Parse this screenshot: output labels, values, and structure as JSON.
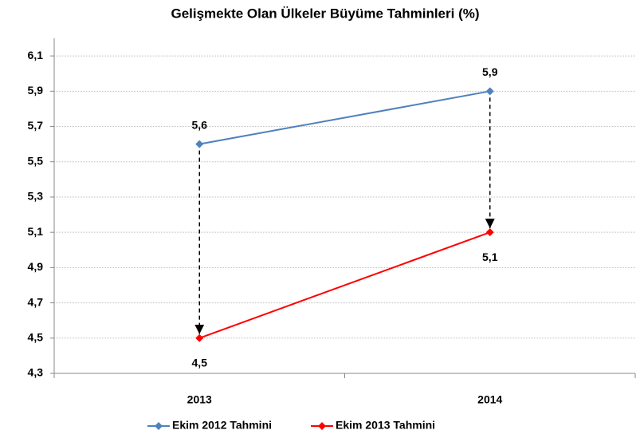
{
  "chart_data": {
    "type": "line",
    "title": "Gelişmekte Olan Ülkeler Büyüme Tahminleri (%)",
    "categories": [
      "2013",
      "2014"
    ],
    "series": [
      {
        "name": "Ekim 2012 Tahmini",
        "color": "#4f81bd",
        "values": [
          5.6,
          5.9
        ],
        "value_labels": [
          "5,6",
          "5,9"
        ]
      },
      {
        "name": "Ekim 2013 Tahmini",
        "color": "#ff0000",
        "values": [
          4.5,
          5.1
        ],
        "value_labels": [
          "4,5",
          "5,1"
        ]
      }
    ],
    "ylim": [
      4.3,
      6.2
    ],
    "yticks": [
      {
        "value": 4.3,
        "label": "4,3"
      },
      {
        "value": 4.5,
        "label": "4,5"
      },
      {
        "value": 4.7,
        "label": "4,7"
      },
      {
        "value": 4.9,
        "label": "4,9"
      },
      {
        "value": 5.1,
        "label": "5,1"
      },
      {
        "value": 5.3,
        "label": "5,3"
      },
      {
        "value": 5.5,
        "label": "5,5"
      },
      {
        "value": 5.7,
        "label": "5,7"
      },
      {
        "value": 5.9,
        "label": "5,9"
      },
      {
        "value": 6.1,
        "label": "6,1"
      }
    ],
    "grid": true,
    "legend": "bottom"
  }
}
